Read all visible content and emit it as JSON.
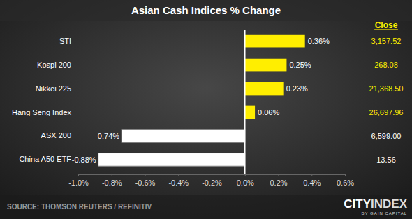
{
  "chart_data": {
    "type": "bar",
    "orientation": "horizontal",
    "title": "Asian Cash Indices % Change",
    "categories": [
      "STI",
      "Kospi 200",
      "Nikkei 225",
      "Hang Seng Index",
      "ASX 200",
      "China A50 ETF"
    ],
    "values": [
      0.36,
      0.25,
      0.23,
      0.06,
      -0.74,
      -0.88
    ],
    "value_labels": [
      "0.36%",
      "0.25%",
      "0.23%",
      "0.06%",
      "-0.74%",
      "-0.88%"
    ],
    "data_labels": true,
    "colors": [
      "#ffee00",
      "#ffee00",
      "#ffee00",
      "#ffee00",
      "#ffffff",
      "#ffffff"
    ],
    "xlim": [
      -1.0,
      0.6
    ],
    "xticks": [
      {
        "value": -1.0,
        "label": "-1.0%"
      },
      {
        "value": -0.8,
        "label": "-0.8%"
      },
      {
        "value": -0.6,
        "label": "-0.6%"
      },
      {
        "value": -0.4,
        "label": "-0.4%"
      },
      {
        "value": -0.2,
        "label": "-0.2%"
      },
      {
        "value": 0.0,
        "label": "0.0%"
      },
      {
        "value": 0.2,
        "label": "0.2%"
      },
      {
        "value": 0.4,
        "label": "0.4%"
      },
      {
        "value": 0.6,
        "label": "0.6%"
      }
    ],
    "grid": false,
    "close": {
      "title": "Close",
      "values": [
        3157.52,
        268.08,
        21368.5,
        26697.96,
        6599.0,
        13.56
      ],
      "value_labels": [
        "3,157.52",
        "268.08",
        "21,368.50",
        "26,697.96",
        "6,599.00",
        "13.56"
      ]
    },
    "annotations": [
      "SOURCE: THOMSON REUTERS / REFINITIV",
      "CITY",
      "INDEX",
      "BY GAIN CAPITAL"
    ]
  }
}
